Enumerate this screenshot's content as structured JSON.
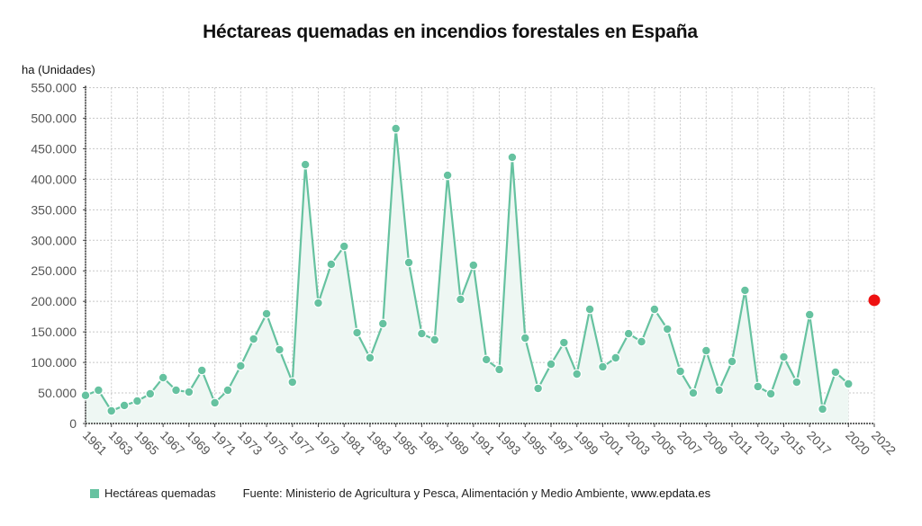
{
  "chart_data": {
    "type": "line",
    "title": "Héctareas quemadas en incendios forestales en España",
    "ylabel": "ha (Unidades)",
    "xlabel": "",
    "ylim": [
      0,
      550000
    ],
    "xlim": [
      1961,
      2022
    ],
    "y_ticks": [
      0,
      50000,
      100000,
      150000,
      200000,
      250000,
      300000,
      350000,
      400000,
      450000,
      500000,
      550000
    ],
    "y_tick_labels": [
      "0",
      "50.000",
      "100.000",
      "150.000",
      "200.000",
      "250.000",
      "300.000",
      "350.000",
      "400.000",
      "450.000",
      "500.000",
      "550.000"
    ],
    "x_tick_labels": [
      "1961",
      "1963",
      "1965",
      "1967",
      "1969",
      "1971",
      "1973",
      "1975",
      "1977",
      "1979",
      "1981",
      "1983",
      "1985",
      "1987",
      "1989",
      "1991",
      "1993",
      "1995",
      "1997",
      "1999",
      "2001",
      "2003",
      "2005",
      "2007",
      "2009",
      "2011",
      "2013",
      "2015",
      "2017",
      "2020",
      "2022"
    ],
    "grid": true,
    "series": [
      {
        "name": "Hectáreas quemadas",
        "color": "#66c2a0",
        "x": [
          1961,
          1962,
          1963,
          1964,
          1965,
          1966,
          1967,
          1968,
          1969,
          1970,
          1971,
          1972,
          1973,
          1974,
          1975,
          1976,
          1977,
          1978,
          1979,
          1980,
          1981,
          1982,
          1983,
          1984,
          1985,
          1986,
          1987,
          1988,
          1989,
          1990,
          1991,
          1992,
          1993,
          1994,
          1995,
          1996,
          1997,
          1998,
          1999,
          2000,
          2001,
          2002,
          2003,
          2004,
          2005,
          2006,
          2007,
          2008,
          2009,
          2010,
          2011,
          2012,
          2013,
          2014,
          2015,
          2016,
          2017,
          2018,
          2019,
          2020
        ],
        "values": [
          46000,
          54500,
          20600,
          29500,
          36800,
          48600,
          75100,
          54500,
          51500,
          86900,
          33900,
          54500,
          94300,
          138400,
          179700,
          120800,
          67700,
          424000,
          197300,
          260700,
          290100,
          148700,
          107500,
          163500,
          483000,
          263600,
          147200,
          137000,
          406500,
          203200,
          259200,
          104600,
          88400,
          436000,
          139900,
          57400,
          97200,
          132500,
          81000,
          187000,
          92800,
          107500,
          147200,
          134000,
          187000,
          154600,
          85400,
          50000,
          119300,
          54500,
          101600,
          218000,
          60400,
          48600,
          109000,
          67700,
          178200,
          23600,
          84000,
          64800
        ]
      }
    ],
    "highlight_point": {
      "x": 2022,
      "value": 201800,
      "color": "#ee1111"
    },
    "legend": {
      "placement": "bottom-left",
      "entries": [
        "Hectáreas quemadas"
      ]
    },
    "source": "Fuente: Ministerio de Agricultura y Pesca, Alimentación y Medio Ambiente, ",
    "source_site": "www.epdata.es"
  }
}
